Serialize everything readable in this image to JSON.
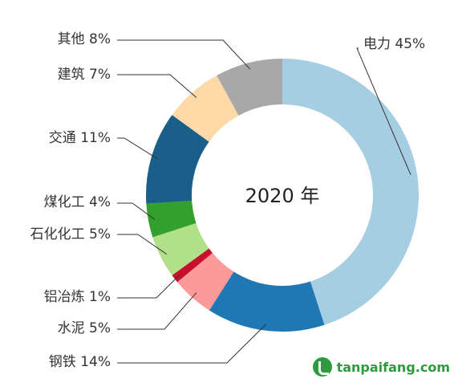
{
  "chart_data": {
    "type": "pie",
    "donut": true,
    "center_label": "2020 年",
    "slices": [
      {
        "name": "电力",
        "value": 45,
        "label": "电力 45%",
        "color": "#a6cee3"
      },
      {
        "name": "钢铁",
        "value": 14,
        "label": "钢铁 14%",
        "color": "#1f78b4"
      },
      {
        "name": "水泥",
        "value": 5,
        "label": "水泥 5%",
        "color": "#fb9a99"
      },
      {
        "name": "铝冶炼",
        "value": 1,
        "label": "铝冶炼 1%",
        "color": "#c8102e"
      },
      {
        "name": "石化化工",
        "value": 5,
        "label": "石化化工 5%",
        "color": "#b2df8a"
      },
      {
        "name": "煤化工",
        "value": 4,
        "label": "煤化工 4%",
        "color": "#33a02c"
      },
      {
        "name": "交通",
        "value": 11,
        "label": "交通 11%",
        "color": "#1a5f8a"
      },
      {
        "name": "建筑",
        "value": 7,
        "label": "建筑 7%",
        "color": "#fdd9a8"
      },
      {
        "name": "其他",
        "value": 8,
        "label": "其他 8%",
        "color": "#a8a8a8"
      }
    ]
  },
  "watermark": {
    "text": "tanpaifang.com",
    "icon": "leaf-logo-icon"
  }
}
